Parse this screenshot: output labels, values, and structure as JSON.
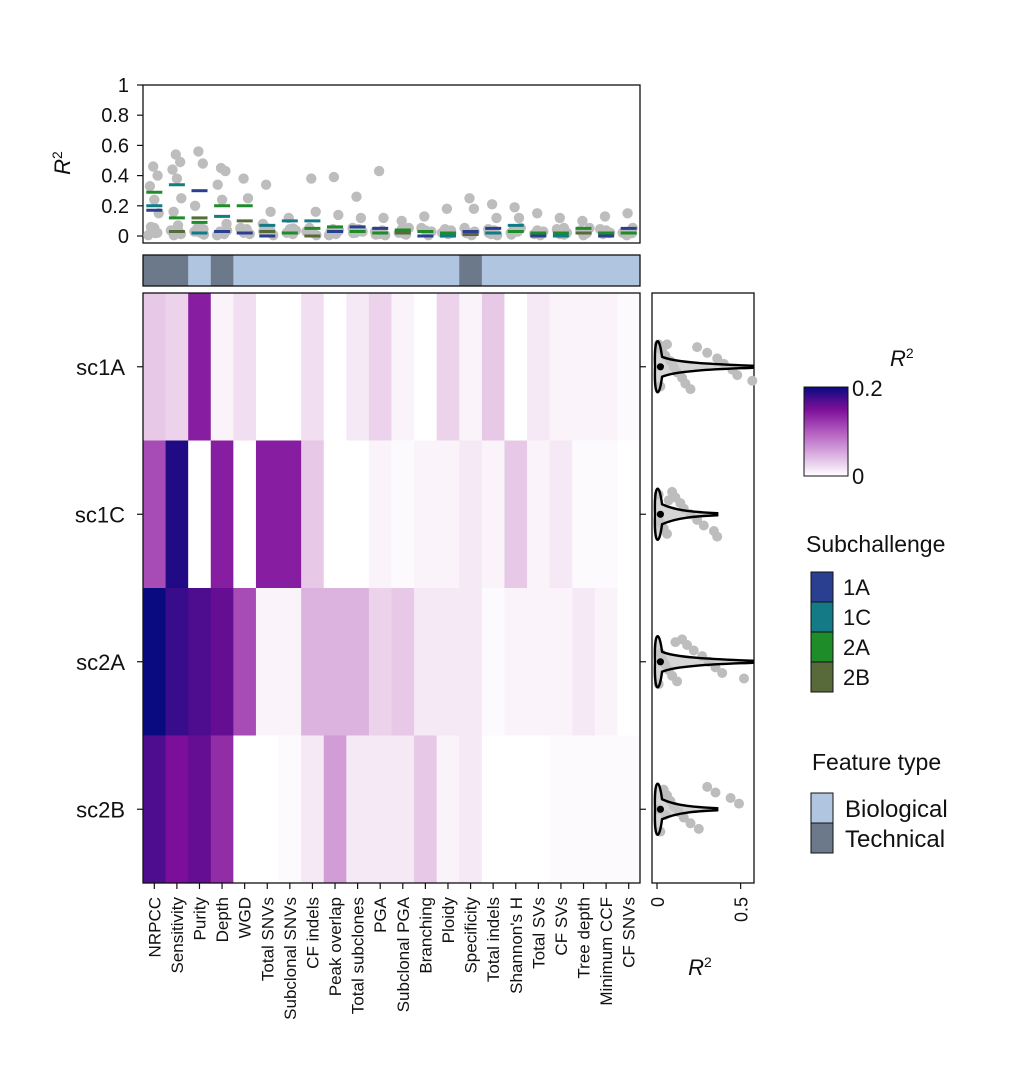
{
  "chart_data": [
    {
      "type": "heatmap",
      "id": "main-heatmap",
      "rows": [
        "sc1A",
        "sc1C",
        "sc2A",
        "sc2B"
      ],
      "columns": [
        "NRPCC",
        "Sensitivity",
        "Purity",
        "Depth",
        "WGD",
        "Total SNVs",
        "Subclonal SNVs",
        "CF indels",
        "Peak overlap",
        "Total subclones",
        "PGA",
        "Subclonal PGA",
        "Branching",
        "Ploidy",
        "Specificity",
        "Total indels",
        "Shannon's H",
        "Total SVs",
        "CF SVs",
        "Tree depth",
        "Minimum CCF",
        "CF SNVs"
      ],
      "values": [
        [
          0.05,
          0.04,
          0.14,
          0.01,
          0.03,
          0.0,
          0.0,
          0.03,
          0.0,
          0.02,
          0.04,
          0.01,
          0.0,
          0.04,
          0.01,
          0.05,
          0.0,
          0.02,
          0.01,
          0.01,
          0.01,
          0.005
        ],
        [
          0.11,
          0.19,
          0.0,
          0.14,
          0.0,
          0.14,
          0.14,
          0.05,
          0.0,
          0.0,
          0.01,
          0.005,
          0.01,
          0.01,
          0.02,
          0.01,
          0.05,
          0.01,
          0.02,
          0.005,
          0.005,
          0.0
        ],
        [
          0.22,
          0.18,
          0.17,
          0.16,
          0.11,
          0.01,
          0.01,
          0.06,
          0.06,
          0.06,
          0.04,
          0.05,
          0.02,
          0.02,
          0.02,
          0.005,
          0.01,
          0.01,
          0.01,
          0.02,
          0.01,
          0.0
        ],
        [
          0.17,
          0.15,
          0.16,
          0.13,
          0.0,
          0.0,
          0.005,
          0.02,
          0.07,
          0.02,
          0.02,
          0.02,
          0.05,
          0.01,
          0.02,
          0.0,
          0.0,
          0.0,
          0.005,
          0.005,
          0.005,
          0.005
        ]
      ],
      "color_range": [
        0,
        0.2
      ]
    },
    {
      "type": "scatter",
      "id": "top-strip",
      "ylabel": "R",
      "ylabel_sup": "2",
      "ylim": [
        0,
        1
      ],
      "yticks": [
        "0",
        "0.2",
        "0.4",
        "0.6",
        "0.8",
        "1"
      ],
      "ytick_values": [
        0,
        0.2,
        0.4,
        0.6,
        0.8,
        1
      ],
      "median_bars": [
        {
          "col": 0,
          "series": "2A",
          "value": 0.29
        },
        {
          "col": 0,
          "series": "1C",
          "value": 0.2
        },
        {
          "col": 0,
          "series": "1A",
          "value": 0.17
        },
        {
          "col": 1,
          "series": "1C",
          "value": 0.34
        },
        {
          "col": 1,
          "series": "2A",
          "value": 0.12
        },
        {
          "col": 1,
          "series": "2B",
          "value": 0.03
        },
        {
          "col": 2,
          "series": "1A",
          "value": 0.3
        },
        {
          "col": 2,
          "series": "2B",
          "value": 0.12
        },
        {
          "col": 2,
          "series": "2A",
          "value": 0.09
        },
        {
          "col": 2,
          "series": "1C",
          "value": 0.02
        },
        {
          "col": 3,
          "series": "2A",
          "value": 0.2
        },
        {
          "col": 3,
          "series": "1C",
          "value": 0.13
        },
        {
          "col": 3,
          "series": "1A",
          "value": 0.03
        },
        {
          "col": 4,
          "series": "2A",
          "value": 0.2
        },
        {
          "col": 4,
          "series": "2B",
          "value": 0.1
        },
        {
          "col": 4,
          "series": "1A",
          "value": 0.02
        },
        {
          "col": 5,
          "series": "1C",
          "value": 0.07
        },
        {
          "col": 5,
          "series": "2B",
          "value": 0.03
        },
        {
          "col": 5,
          "series": "1A",
          "value": 0.0
        },
        {
          "col": 6,
          "series": "1C",
          "value": 0.1
        },
        {
          "col": 6,
          "series": "2A",
          "value": 0.02
        },
        {
          "col": 7,
          "series": "1C",
          "value": 0.1
        },
        {
          "col": 7,
          "series": "2A",
          "value": 0.05
        },
        {
          "col": 7,
          "series": "2B",
          "value": 0.0
        },
        {
          "col": 8,
          "series": "2A",
          "value": 0.06
        },
        {
          "col": 8,
          "series": "1A",
          "value": 0.03
        },
        {
          "col": 9,
          "series": "1A",
          "value": 0.06
        },
        {
          "col": 9,
          "series": "2A",
          "value": 0.03
        },
        {
          "col": 10,
          "series": "1A",
          "value": 0.05
        },
        {
          "col": 10,
          "series": "2A",
          "value": 0.02
        },
        {
          "col": 11,
          "series": "2A",
          "value": 0.04
        },
        {
          "col": 11,
          "series": "2B",
          "value": 0.02
        },
        {
          "col": 12,
          "series": "2A",
          "value": 0.03
        },
        {
          "col": 12,
          "series": "1A",
          "value": 0.0
        },
        {
          "col": 13,
          "series": "2A",
          "value": 0.02
        },
        {
          "col": 13,
          "series": "1C",
          "value": 0.0
        },
        {
          "col": 14,
          "series": "1A",
          "value": 0.03
        },
        {
          "col": 14,
          "series": "2B",
          "value": 0.01
        },
        {
          "col": 15,
          "series": "1A",
          "value": 0.05
        },
        {
          "col": 15,
          "series": "1C",
          "value": 0.02
        },
        {
          "col": 16,
          "series": "1C",
          "value": 0.07
        },
        {
          "col": 16,
          "series": "2A",
          "value": 0.03
        },
        {
          "col": 17,
          "series": "2A",
          "value": 0.02
        },
        {
          "col": 17,
          "series": "1A",
          "value": 0.0
        },
        {
          "col": 18,
          "series": "2A",
          "value": 0.02
        },
        {
          "col": 18,
          "series": "1C",
          "value": 0.0
        },
        {
          "col": 19,
          "series": "2A",
          "value": 0.05
        },
        {
          "col": 19,
          "series": "2B",
          "value": 0.02
        },
        {
          "col": 20,
          "series": "2A",
          "value": 0.02
        },
        {
          "col": 20,
          "series": "1A",
          "value": 0.0
        },
        {
          "col": 21,
          "series": "1A",
          "value": 0.05
        },
        {
          "col": 21,
          "series": "2A",
          "value": 0.02
        }
      ],
      "points": [
        {
          "col": 0,
          "value": 0.46
        },
        {
          "col": 0,
          "value": 0.4
        },
        {
          "col": 0,
          "value": 0.33
        },
        {
          "col": 0,
          "value": 0.24
        },
        {
          "col": 0,
          "value": 0.15
        },
        {
          "col": 0,
          "value": 0.06
        },
        {
          "col": 0,
          "value": 0.02
        },
        {
          "col": 1,
          "value": 0.54
        },
        {
          "col": 1,
          "value": 0.49
        },
        {
          "col": 1,
          "value": 0.44
        },
        {
          "col": 1,
          "value": 0.38
        },
        {
          "col": 1,
          "value": 0.25
        },
        {
          "col": 1,
          "value": 0.16
        },
        {
          "col": 1,
          "value": 0.07
        },
        {
          "col": 2,
          "value": 0.56
        },
        {
          "col": 2,
          "value": 0.48
        },
        {
          "col": 2,
          "value": 0.2
        },
        {
          "col": 2,
          "value": 0.06
        },
        {
          "col": 2,
          "value": 0.01
        },
        {
          "col": 3,
          "value": 0.45
        },
        {
          "col": 3,
          "value": 0.43
        },
        {
          "col": 3,
          "value": 0.34
        },
        {
          "col": 3,
          "value": 0.24
        },
        {
          "col": 3,
          "value": 0.08
        },
        {
          "col": 4,
          "value": 0.38
        },
        {
          "col": 4,
          "value": 0.25
        },
        {
          "col": 4,
          "value": 0.05
        },
        {
          "col": 5,
          "value": 0.34
        },
        {
          "col": 5,
          "value": 0.16
        },
        {
          "col": 5,
          "value": 0.08
        },
        {
          "col": 6,
          "value": 0.12
        },
        {
          "col": 6,
          "value": 0.05
        },
        {
          "col": 7,
          "value": 0.38
        },
        {
          "col": 7,
          "value": 0.16
        },
        {
          "col": 7,
          "value": 0.03
        },
        {
          "col": 8,
          "value": 0.39
        },
        {
          "col": 8,
          "value": 0.14
        },
        {
          "col": 8,
          "value": 0.03
        },
        {
          "col": 9,
          "value": 0.26
        },
        {
          "col": 9,
          "value": 0.12
        },
        {
          "col": 9,
          "value": 0.02
        },
        {
          "col": 10,
          "value": 0.43
        },
        {
          "col": 10,
          "value": 0.12
        },
        {
          "col": 10,
          "value": 0.01
        },
        {
          "col": 11,
          "value": 0.1
        },
        {
          "col": 11,
          "value": 0.01
        },
        {
          "col": 12,
          "value": 0.13
        },
        {
          "col": 12,
          "value": 0.02
        },
        {
          "col": 13,
          "value": 0.18
        },
        {
          "col": 13,
          "value": 0.02
        },
        {
          "col": 14,
          "value": 0.25
        },
        {
          "col": 14,
          "value": 0.18
        },
        {
          "col": 14,
          "value": 0.02
        },
        {
          "col": 15,
          "value": 0.21
        },
        {
          "col": 15,
          "value": 0.12
        },
        {
          "col": 15,
          "value": 0.02
        },
        {
          "col": 16,
          "value": 0.19
        },
        {
          "col": 16,
          "value": 0.12
        },
        {
          "col": 16,
          "value": 0.01
        },
        {
          "col": 17,
          "value": 0.15
        },
        {
          "col": 17,
          "value": 0.02
        },
        {
          "col": 18,
          "value": 0.12
        },
        {
          "col": 18,
          "value": 0.01
        },
        {
          "col": 19,
          "value": 0.1
        },
        {
          "col": 19,
          "value": 0.02
        },
        {
          "col": 20,
          "value": 0.13
        },
        {
          "col": 20,
          "value": 0.02
        },
        {
          "col": 21,
          "value": 0.15
        },
        {
          "col": 21,
          "value": 0.02
        }
      ]
    },
    {
      "type": "violin",
      "id": "right-violins",
      "xlabel": "R",
      "xlabel_sup": "2",
      "xticks": [
        "0",
        "0.5"
      ],
      "xtick_values": [
        0,
        0.5
      ],
      "xlim": [
        -0.03,
        0.58
      ],
      "rows": [
        "sc1A",
        "sc1C",
        "sc2A",
        "sc2B"
      ],
      "points": [
        [
          0.01,
          0.03,
          0.05,
          0.08,
          0.1,
          0.12,
          0.15,
          0.17,
          0.2,
          0.24,
          0.3,
          0.36,
          0.4,
          0.45,
          0.48,
          0.57,
          0.02,
          0.06
        ],
        [
          0.02,
          0.04,
          0.06,
          0.09,
          0.11,
          0.14,
          0.16,
          0.2,
          0.24,
          0.28,
          0.34,
          0.36,
          0.01,
          0.07
        ],
        [
          0.02,
          0.03,
          0.05,
          0.07,
          0.09,
          0.12,
          0.15,
          0.18,
          0.22,
          0.27,
          0.31,
          0.35,
          0.39,
          0.52,
          0.01,
          0.11
        ],
        [
          0.02,
          0.04,
          0.06,
          0.08,
          0.1,
          0.13,
          0.16,
          0.2,
          0.25,
          0.3,
          0.35,
          0.44,
          0.49,
          0.01,
          0.05
        ]
      ],
      "means": [
        0.02,
        0.02,
        0.02,
        0.02
      ]
    }
  ],
  "feature_type_bar": [
    "Technical",
    "Technical",
    "Biological",
    "Technical",
    "Biological",
    "Biological",
    "Biological",
    "Biological",
    "Biological",
    "Biological",
    "Biological",
    "Biological",
    "Biological",
    "Biological",
    "Technical",
    "Biological",
    "Biological",
    "Biological",
    "Biological",
    "Biological",
    "Biological",
    "Biological"
  ],
  "legends": {
    "colorbar": {
      "title": "R",
      "title_sup": "2",
      "max_label": "0.2",
      "min_label": "0"
    },
    "subchallenge": {
      "title": "Subchallenge",
      "items": [
        {
          "label": "1A",
          "color": "#2a3f8f"
        },
        {
          "label": "1C",
          "color": "#137a86"
        },
        {
          "label": "2A",
          "color": "#1f8c2a"
        },
        {
          "label": "2B",
          "color": "#586a3a"
        }
      ]
    },
    "feature_type": {
      "title": "Feature type",
      "items": [
        {
          "label": "Biological",
          "color": "#b0c6e0"
        },
        {
          "label": "Technical",
          "color": "#6c798a"
        }
      ]
    }
  },
  "colors": {
    "heat_low": "#ffffff",
    "heat_mid": "#8b1a96",
    "heat_high": "#0a0a80",
    "point_gray": "#bdbdbd"
  }
}
